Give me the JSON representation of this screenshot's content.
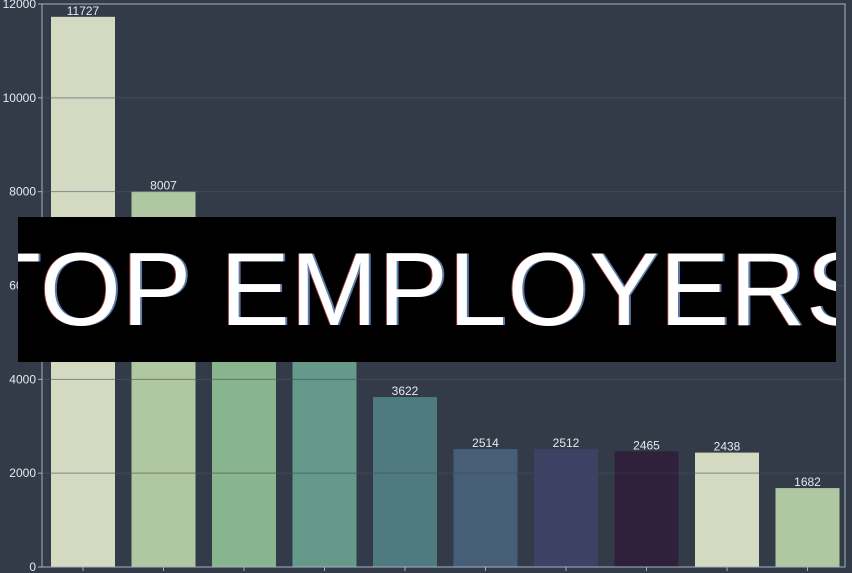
{
  "title": "TOP EMPLOYERS",
  "chart_data": {
    "type": "bar",
    "categories": [
      "",
      "",
      "",
      "",
      "",
      "",
      "",
      "",
      "",
      ""
    ],
    "values": [
      11727,
      8007,
      6550,
      6100,
      3622,
      2514,
      2512,
      2465,
      2438,
      1682
    ],
    "data_labels": [
      "11727",
      "8007",
      "",
      "",
      "3622",
      "2514",
      "2512",
      "2465",
      "2438",
      "1682"
    ],
    "colors": [
      "#d4dac2",
      "#b0c8a2",
      "#88b48e",
      "#65998a",
      "#4f7b80",
      "#465e78",
      "#3d4163",
      "#2f213b",
      "#d4dac2",
      "#b0c8a2"
    ],
    "ylim": [
      0,
      12000
    ],
    "yticks": [
      0,
      2000,
      4000,
      6000,
      8000,
      10000,
      12000
    ],
    "ytick_labels": [
      "0",
      "2000",
      "4000",
      "6000",
      "8000",
      "10000",
      "12000"
    ],
    "grid": true,
    "xlabel": "",
    "ylabel": "",
    "background_color": "#343b48",
    "grid_color": "#45505e",
    "axis_color": "#a3b0c6",
    "text_color": "#e6e9ef"
  }
}
